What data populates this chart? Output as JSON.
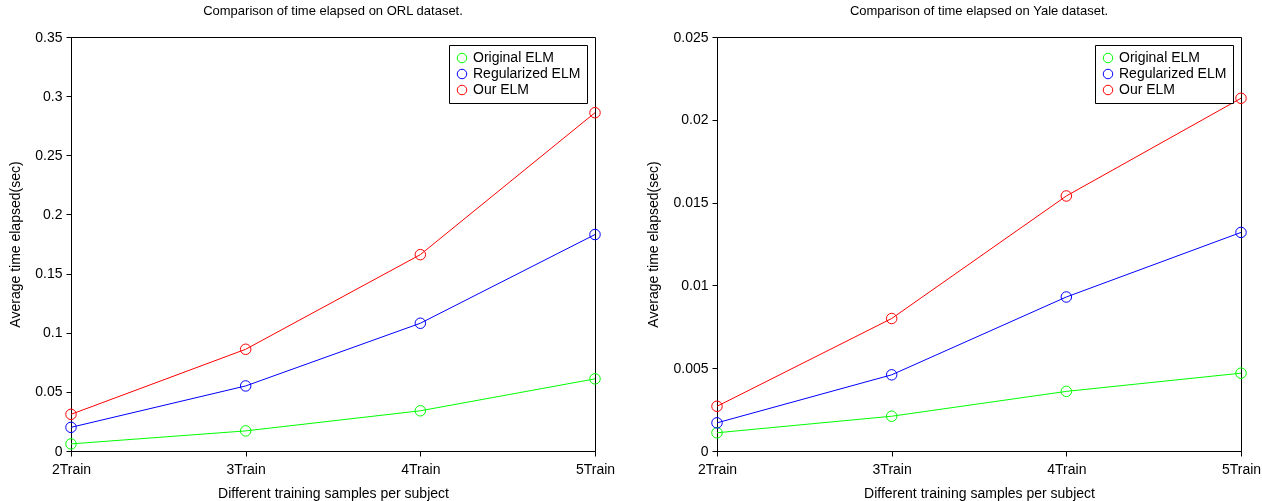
{
  "chart_data": [
    {
      "type": "line",
      "title": "Comparison of time elapsed on ORL dataset.",
      "xlabel": "Different training samples per subject",
      "ylabel": "Average time elapsed(sec)",
      "categories": [
        "2Train",
        "3Train",
        "4Train",
        "5Train"
      ],
      "series": [
        {
          "name": "Original ELM",
          "color": "#00ff00",
          "values": [
            0.006,
            0.017,
            0.034,
            0.061
          ]
        },
        {
          "name": "Regularized ELM",
          "color": "#0000ff",
          "values": [
            0.02,
            0.055,
            0.108,
            0.183
          ]
        },
        {
          "name": "Our ELM",
          "color": "#ff0000",
          "values": [
            0.031,
            0.086,
            0.166,
            0.286
          ]
        }
      ],
      "ylim": [
        0,
        0.35
      ],
      "yticks": [
        0,
        0.05,
        0.1,
        0.15,
        0.2,
        0.25,
        0.3,
        0.35
      ],
      "grid": false,
      "legend": "top right",
      "marker": "circle",
      "line_style": "solid"
    },
    {
      "type": "line",
      "title": "Comparison of time elapsed on Yale dataset.",
      "xlabel": "Different training samples per subject",
      "ylabel": "Average time elapsed(sec)",
      "categories": [
        "2Train",
        "3Train",
        "4Train",
        "5Train"
      ],
      "series": [
        {
          "name": "Original ELM",
          "color": "#00ff00",
          "values": [
            0.0011,
            0.0021,
            0.0036,
            0.0047
          ]
        },
        {
          "name": "Regularized ELM",
          "color": "#0000ff",
          "values": [
            0.0017,
            0.0046,
            0.0093,
            0.0132
          ]
        },
        {
          "name": "Our ELM",
          "color": "#ff0000",
          "values": [
            0.0027,
            0.008,
            0.0154,
            0.0213
          ]
        }
      ],
      "ylim": [
        0,
        0.025
      ],
      "yticks": [
        0,
        0.005,
        0.01,
        0.015,
        0.02,
        0.025
      ],
      "grid": false,
      "legend": "top right",
      "marker": "circle",
      "line_style": "solid"
    }
  ]
}
